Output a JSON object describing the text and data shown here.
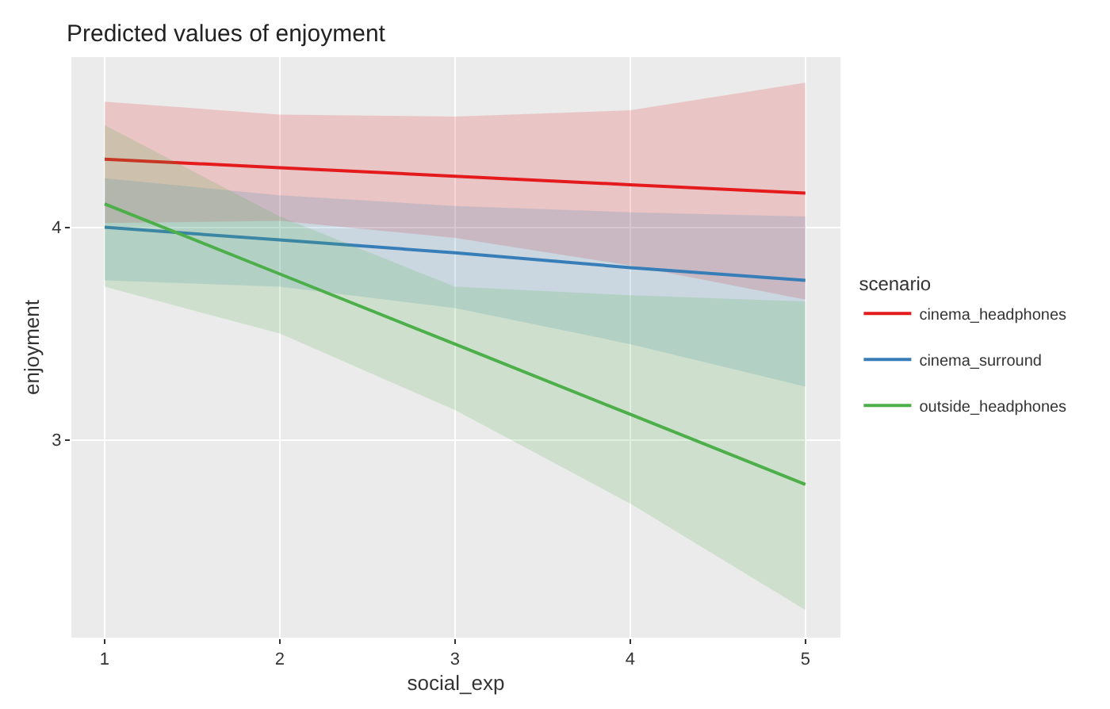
{
  "chart_data": {
    "type": "line",
    "title": "Predicted values of enjoyment",
    "xlabel": "social_exp",
    "ylabel": "enjoyment",
    "legend_title": "scenario",
    "legend": "right",
    "grid": true,
    "marker": "none",
    "line_style": "solid",
    "x": [
      1,
      2,
      3,
      4,
      5
    ],
    "xlim": [
      0.81,
      5.2
    ],
    "xticks": [
      1,
      2,
      3,
      4,
      5
    ],
    "ylim": [
      2.07,
      4.8
    ],
    "yticks": [
      3,
      4
    ],
    "series": [
      {
        "name": "cinema_headphones",
        "color": "#e41a1c",
        "values": [
          4.32,
          4.28,
          4.24,
          4.2,
          4.16
        ],
        "lower": [
          4.02,
          4.03,
          3.95,
          3.82,
          3.66
        ],
        "upper": [
          4.59,
          4.53,
          4.52,
          4.55,
          4.68
        ]
      },
      {
        "name": "cinema_surround",
        "color": "#377eb8",
        "values": [
          4.0,
          3.94,
          3.88,
          3.81,
          3.75
        ],
        "lower": [
          3.75,
          3.72,
          3.62,
          3.45,
          3.25
        ],
        "upper": [
          4.23,
          4.15,
          4.1,
          4.07,
          4.05
        ]
      },
      {
        "name": "outside_headphones",
        "color": "#4daf4a",
        "values": [
          4.11,
          3.78,
          3.45,
          3.12,
          2.79
        ],
        "lower": [
          3.72,
          3.5,
          3.14,
          2.7,
          2.2
        ],
        "upper": [
          4.48,
          4.05,
          3.72,
          3.68,
          3.65
        ]
      }
    ]
  }
}
